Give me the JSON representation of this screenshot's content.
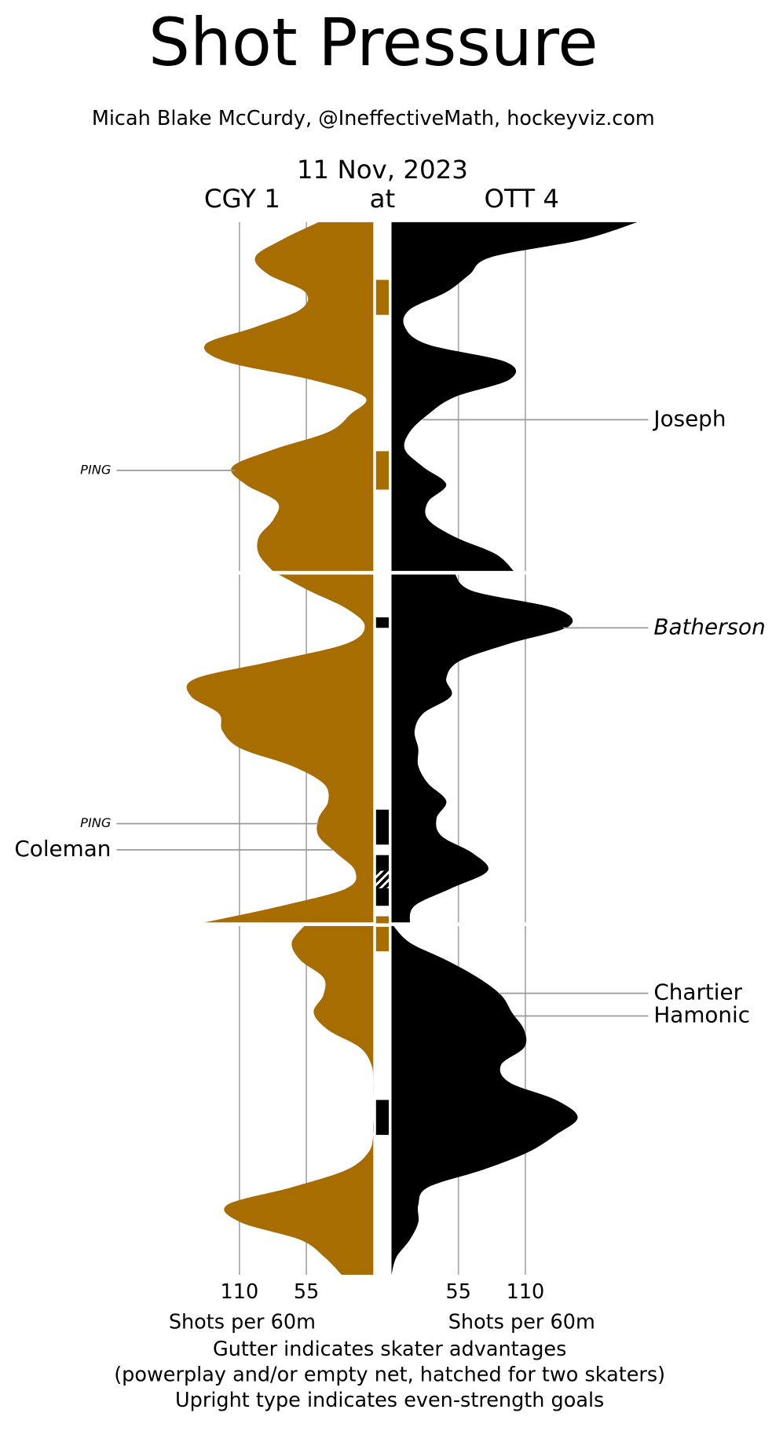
{
  "chart_data": {
    "type": "shot-pressure",
    "title": "Shot Pressure",
    "subtitle": "Micah Blake McCurdy, @IneffectiveMath, hockeyviz.com",
    "date": "11 Nov, 2023",
    "separator": "at",
    "xlabel": "Shots per 60m",
    "notes": [
      "Gutter indicates skater advantages",
      "(powerplay and/or empty net, hatched for two skaters)",
      "Upright type indicates even-strength goals"
    ],
    "xlim": [
      0,
      202
    ],
    "xticks": [
      55,
      110
    ],
    "ylim": [
      0,
      60
    ],
    "grid": true,
    "x": [
      [
        0,
        1,
        2,
        3,
        4,
        5,
        6,
        7,
        8,
        9,
        10,
        11,
        12,
        13,
        14,
        15,
        16,
        17,
        18,
        19,
        20
      ],
      [
        20,
        21,
        22,
        23,
        24,
        25,
        26,
        27,
        28,
        29,
        30,
        31,
        32,
        33,
        34,
        35,
        36,
        37,
        38,
        39,
        40
      ],
      [
        40,
        41,
        42,
        43,
        44,
        45,
        46,
        47,
        48,
        49,
        50,
        51,
        52,
        53,
        54,
        55,
        56,
        57,
        58,
        59,
        60
      ]
    ],
    "series": [
      {
        "name": "CGY 1",
        "side": "left",
        "color": "#a86d00",
        "periods": [
          [
            45,
            75,
            97,
            86,
            56,
            60,
            97,
            138,
            120,
            52,
            7,
            19,
            37,
            82,
            116,
            105,
            79,
            82,
            94,
            94,
            82
          ],
          [
            79,
            52,
            22,
            7,
            22,
            82,
            146,
            150,
            127,
            124,
            109,
            67,
            41,
            37,
            45,
            45,
            30,
            15,
            22,
            75,
            142
          ],
          [
            56,
            67,
            60,
            41,
            41,
            49,
            37,
            11,
            1.5,
            0,
            0,
            0,
            0,
            4,
            22,
            67,
            120,
            109,
            60,
            40,
            26
          ]
        ]
      },
      {
        "name": "OTT 4",
        "side": "right",
        "color": "#000000",
        "periods": [
          [
            202,
            157,
            82,
            64,
            45,
            15,
            11,
            30,
            94,
            97,
            52,
            30,
            15,
            11,
            26,
            45,
            30,
            30,
            52,
            86,
            101
          ],
          [
            52,
            67,
            135,
            146,
            97,
            56,
            45,
            49,
            26,
            19,
            22,
            22,
            30,
            45,
            37,
            41,
            67,
            79,
            49,
            19,
            15
          ],
          [
            1,
            15,
            45,
            71,
            90,
            99,
            109,
            109,
            90,
            97,
            135,
            153,
            135,
            112,
            75,
            30,
            22,
            22,
            15,
            4,
            0
          ]
        ]
      }
    ],
    "gutter": [
      {
        "start": 3.3,
        "end": 5.3,
        "color": "#a86d00",
        "hatched": false
      },
      {
        "start": 13.1,
        "end": 15.3,
        "color": "#a86d00",
        "hatched": false
      },
      {
        "start": 22.5,
        "end": 23.1,
        "color": "#000000",
        "hatched": false
      },
      {
        "start": 33.5,
        "end": 35.5,
        "color": "#000000",
        "hatched": false
      },
      {
        "start": 36.1,
        "end": 37,
        "color": "#000000",
        "hatched": false
      },
      {
        "start": 37,
        "end": 38,
        "color": "#000000",
        "hatched": true
      },
      {
        "start": 38,
        "end": 39,
        "color": "#000000",
        "hatched": false
      },
      {
        "start": 39.6,
        "end": 40,
        "color": "#a86d00",
        "hatched": false
      },
      {
        "start": 40.1,
        "end": 41.5,
        "color": "#a86d00",
        "hatched": false
      },
      {
        "start": 50,
        "end": 52,
        "color": "#000000",
        "hatched": false
      }
    ],
    "goals": [
      {
        "label": "Joseph",
        "minute": 11.3,
        "side": "right",
        "italic": false
      },
      {
        "label": "PING",
        "minute": 14.2,
        "side": "left",
        "italic": true
      },
      {
        "label": "Batherson",
        "minute": 23.1,
        "side": "right",
        "italic": true
      },
      {
        "label": "PING",
        "minute": 34.3,
        "side": "left",
        "italic": true
      },
      {
        "label": "Coleman",
        "minute": 35.8,
        "side": "left",
        "italic": false
      },
      {
        "label": "Chartier",
        "minute": 43.9,
        "side": "right",
        "italic": false
      },
      {
        "label": "Hamonic",
        "minute": 45.2,
        "side": "right",
        "italic": false
      }
    ]
  }
}
